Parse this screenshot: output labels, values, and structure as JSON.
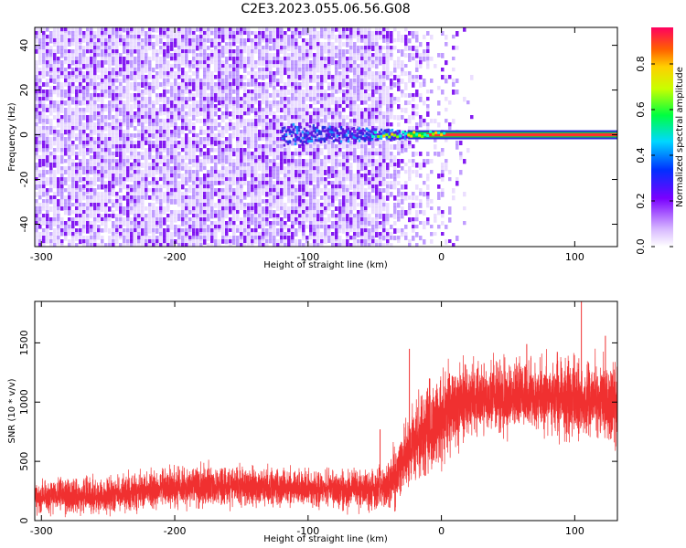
{
  "figure_title": "C2E3.2023.055.06.56.G08",
  "chart_data": [
    {
      "type": "heatmap",
      "title": "",
      "xlabel": "Height of straight line (km)",
      "ylabel": "Frequency (Hz)",
      "xlim": [
        -305,
        132
      ],
      "ylim": [
        -50,
        48
      ],
      "x_ticks": [
        -300,
        -200,
        -100,
        0,
        100
      ],
      "x_tick_labels": [
        "-300",
        "-200",
        "-100",
        "0",
        "100"
      ],
      "y_ticks": [
        -40,
        -20,
        0,
        20,
        40
      ],
      "y_tick_labels": [
        "-40",
        "-20",
        "0",
        "20",
        "40"
      ],
      "grid": false,
      "colorbar": {
        "label": "Normalized spectral amplitude",
        "range": [
          0,
          0.96
        ],
        "ticks": [
          0,
          0.2,
          0.4,
          0.6,
          0.8
        ],
        "tick_labels": [
          "0.0",
          "0.2",
          "0.4",
          "0.6",
          "0.8"
        ],
        "colormap": "rainbow (purple to red)",
        "position": "right"
      },
      "features": {
        "noise_region_x": [
          -305,
          -40
        ],
        "noise_fade_x": [
          -40,
          25
        ],
        "carrier_frequency_hz": 0,
        "carrier_start_x": -120,
        "carrier_strong_from_x": -25,
        "carrier_half_width_hz": 1.2
      },
      "colors": {
        "noise_low": "#e6d6ff",
        "noise_mid": "#b58cff",
        "noise_high": "#7d10f0",
        "carrier_core": "#ff3030",
        "carrier_edge": "#2b2bd8"
      }
    },
    {
      "type": "area",
      "title": "",
      "xlabel": "Height of straight line (km)",
      "ylabel": "SNR (10 * v/v)",
      "xlim": [
        -305,
        132
      ],
      "ylim": [
        0,
        1850
      ],
      "x_ticks": [
        -300,
        -200,
        -100,
        0,
        100
      ],
      "x_tick_labels": [
        "-300",
        "-200",
        "-100",
        "0",
        "100"
      ],
      "y_ticks": [
        0,
        500,
        1000,
        1500
      ],
      "y_tick_labels": [
        "0",
        "500",
        "1000",
        "1500"
      ],
      "grid": false,
      "color": "#f03030",
      "envelope": {
        "x": [
          -305,
          -250,
          -200,
          -150,
          -100,
          -50,
          -40,
          -30,
          -20,
          -10,
          0,
          10,
          20,
          30,
          50,
          70,
          100,
          120,
          132
        ],
        "low": [
          40,
          40,
          90,
          110,
          110,
          60,
          60,
          150,
          250,
          350,
          480,
          580,
          650,
          690,
          700,
          700,
          650,
          650,
          620
        ],
        "high": [
          360,
          380,
          470,
          490,
          440,
          440,
          520,
          820,
          1050,
          1180,
          1250,
          1320,
          1380,
          1400,
          1400,
          1390,
          1400,
          1380,
          1380
        ]
      },
      "spikes": [
        {
          "x": 105,
          "y": 1850
        },
        {
          "x": 123,
          "y": 1560
        },
        {
          "x": 64,
          "y": 1490
        },
        {
          "x": -24,
          "y": 1450
        },
        {
          "x": -46,
          "y": 770
        }
      ]
    }
  ]
}
